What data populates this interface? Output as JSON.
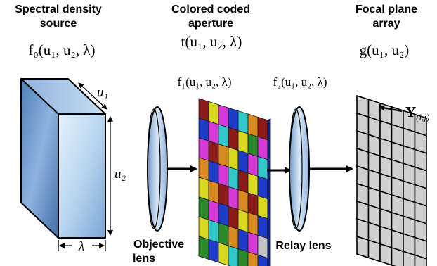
{
  "source": {
    "title_line1": "Spectral density",
    "title_line2": "source",
    "formula": "f₀(u₁, u₂, λ)",
    "dim_u1": "u₁",
    "dim_u2": "u₂",
    "dim_lambda": "λ"
  },
  "aperture": {
    "title_line1": "Colored coded",
    "title_line2": "aperture",
    "formula": "t(u₁, u₂, λ)",
    "f1_formula": "f₁(u₁, u₂, λ)",
    "palette": [
      "#8b1a1a",
      "#1e3cc8",
      "#d63ad6",
      "#d8d820",
      "#2a8a2a",
      "#30c8c8",
      "#d88a20",
      "#c2c2c2"
    ]
  },
  "objective_lens": {
    "label_line1": "Objective",
    "label_line2": "lens"
  },
  "relay_lens": {
    "label": "Relay lens",
    "f2_formula": "f₂(u₁, u₂, λ)"
  },
  "detector": {
    "title_line1": "Focal plane",
    "title_line2": "array",
    "formula": "g(u₁, u₂)",
    "pixel_label": "Y",
    "pixel_subscript": "(i,j)",
    "grid_color": "#cfcfcf"
  }
}
